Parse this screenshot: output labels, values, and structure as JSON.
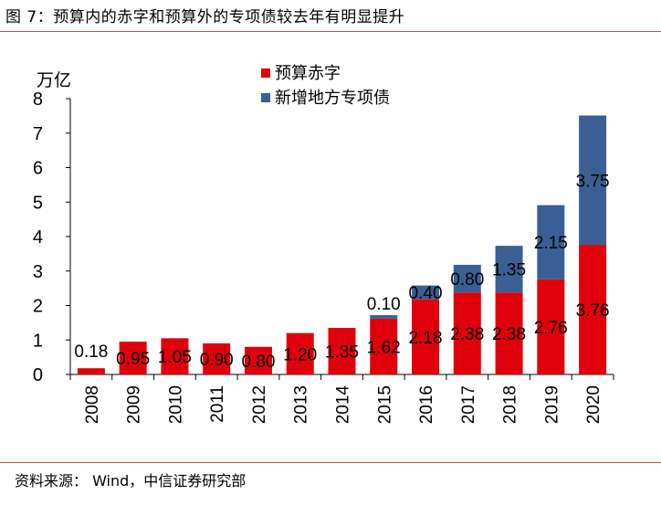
{
  "figure": {
    "title": "图 7：预算内的赤字和预算外的专项债较去年有明显提升",
    "source": "资料来源：  Wind，中信证券研究部"
  },
  "colors": {
    "deficit": "#e0000b",
    "special_bond": "#3a5f94",
    "rule": "#c0504d"
  },
  "chart_data": {
    "type": "bar",
    "stacked": true,
    "ylabel": "万亿",
    "ylim": [
      0,
      8
    ],
    "yticks": [
      "0",
      "1",
      "2",
      "3",
      "4",
      "5",
      "6",
      "7",
      "8"
    ],
    "grid": false,
    "legend_position": "top-center",
    "categories": [
      "2008",
      "2009",
      "2010",
      "2011",
      "2012",
      "2013",
      "2014",
      "2015",
      "2016",
      "2017",
      "2018",
      "2019",
      "2020"
    ],
    "series": [
      {
        "name": "预算赤字",
        "values": [
          0.18,
          0.95,
          1.05,
          0.9,
          0.8,
          1.2,
          1.35,
          1.62,
          2.18,
          2.38,
          2.38,
          2.76,
          3.76
        ],
        "labels": [
          "0.18",
          "0.95",
          "1.05",
          "0.90",
          "0.80",
          "1.20",
          "1.35",
          "1.62",
          "2.18",
          "2.38",
          "2.38",
          "2.76",
          "3.76"
        ]
      },
      {
        "name": "新增地方专项债",
        "values": [
          0,
          0,
          0,
          0,
          0,
          0,
          0,
          0.1,
          0.4,
          0.8,
          1.35,
          2.15,
          3.75
        ],
        "labels": [
          "",
          "",
          "",
          "",
          "",
          "",
          "",
          "0.10",
          "0.40",
          "0.80",
          "1.35",
          "2.15",
          "3.75"
        ]
      }
    ]
  }
}
